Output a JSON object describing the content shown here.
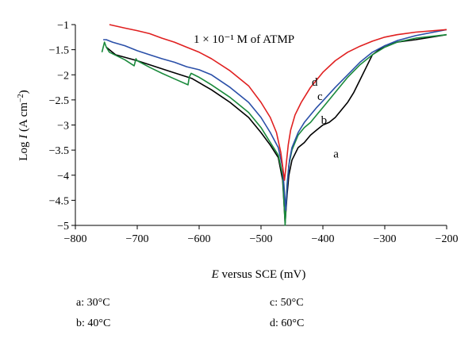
{
  "chart_data": {
    "type": "line",
    "title": "",
    "annotation": "1 × 10⁻¹ M of ATMP",
    "xlabel": "E versus SCE (mV)",
    "ylabel": "Log I (A cm⁻²)",
    "xlim": [
      -800,
      -200
    ],
    "ylim": [
      -5,
      -1
    ],
    "x_ticks": [
      -800,
      -700,
      -600,
      -500,
      -400,
      -300,
      -200
    ],
    "y_ticks": [
      -1,
      -1.5,
      -2,
      -2.5,
      -3,
      -3.5,
      -4,
      -4.5,
      -5
    ],
    "x_tick_labels": [
      "−800",
      "−700",
      "−600",
      "−500",
      "−400",
      "−300",
      "−200"
    ],
    "y_tick_labels": [
      "−1",
      "−1.5",
      "−2",
      "−2.5",
      "−3",
      "−3.5",
      "−4",
      "−4.5",
      "−5"
    ],
    "grid": false,
    "series": [
      {
        "name": "a",
        "color": "#000000",
        "x": [
          -750,
          -735,
          -700,
          -650,
          -612,
          -580,
          -550,
          -520,
          -500,
          -485,
          -472,
          -465,
          -461,
          -458,
          -455,
          -450,
          -440,
          -430,
          -420,
          -410,
          -400,
          -390,
          -380,
          -370,
          -360,
          -350,
          -340,
          -330,
          -320,
          -300,
          -280,
          -250,
          -200
        ],
        "y": [
          -1.45,
          -1.6,
          -1.72,
          -1.92,
          -2.07,
          -2.3,
          -2.55,
          -2.85,
          -3.15,
          -3.4,
          -3.65,
          -4.1,
          -4.95,
          -4.4,
          -4.0,
          -3.7,
          -3.45,
          -3.35,
          -3.2,
          -3.1,
          -3.0,
          -2.95,
          -2.85,
          -2.7,
          -2.55,
          -2.35,
          -2.1,
          -1.85,
          -1.6,
          -1.42,
          -1.35,
          -1.3,
          -1.2
        ]
      },
      {
        "name": "b",
        "color": "#1a8a3c",
        "x": [
          -757,
          -755,
          -753,
          -750,
          -745,
          -720,
          -705,
          -702,
          -700,
          -680,
          -660,
          -640,
          -618,
          -616,
          -613,
          -600,
          -580,
          -550,
          -520,
          -500,
          -485,
          -472,
          -465,
          -461,
          -458,
          -455,
          -450,
          -440,
          -430,
          -420,
          -410,
          -400,
          -380,
          -360,
          -340,
          -320,
          -300,
          -280,
          -250,
          -200
        ],
        "y": [
          -1.55,
          -1.45,
          -1.35,
          -1.45,
          -1.55,
          -1.7,
          -1.82,
          -1.68,
          -1.72,
          -1.85,
          -1.97,
          -2.08,
          -2.2,
          -2.05,
          -1.97,
          -2.05,
          -2.2,
          -2.45,
          -2.75,
          -3.05,
          -3.35,
          -3.6,
          -4.0,
          -5.0,
          -4.2,
          -3.8,
          -3.5,
          -3.2,
          -3.05,
          -2.95,
          -2.8,
          -2.65,
          -2.35,
          -2.05,
          -1.8,
          -1.6,
          -1.45,
          -1.35,
          -1.27,
          -1.2
        ]
      },
      {
        "name": "c",
        "color": "#2a4fa8",
        "x": [
          -755,
          -750,
          -740,
          -720,
          -700,
          -680,
          -660,
          -640,
          -620,
          -600,
          -580,
          -550,
          -520,
          -500,
          -485,
          -472,
          -465,
          -460,
          -457,
          -454,
          -450,
          -440,
          -430,
          -420,
          -410,
          -400,
          -380,
          -360,
          -340,
          -320,
          -300,
          -280,
          -250,
          -200
        ],
        "y": [
          -1.3,
          -1.3,
          -1.35,
          -1.42,
          -1.52,
          -1.6,
          -1.68,
          -1.75,
          -1.84,
          -1.9,
          -2.0,
          -2.25,
          -2.55,
          -2.85,
          -3.15,
          -3.45,
          -3.85,
          -4.7,
          -4.1,
          -3.7,
          -3.45,
          -3.15,
          -2.95,
          -2.8,
          -2.65,
          -2.52,
          -2.25,
          -2.0,
          -1.75,
          -1.55,
          -1.42,
          -1.32,
          -1.22,
          -1.1
        ]
      },
      {
        "name": "d",
        "color": "#e02020",
        "x": [
          -745,
          -720,
          -700,
          -680,
          -660,
          -640,
          -620,
          -600,
          -580,
          -550,
          -520,
          -500,
          -485,
          -475,
          -468,
          -462,
          -459,
          -456,
          -452,
          -445,
          -435,
          -420,
          -400,
          -380,
          -360,
          -340,
          -320,
          -300,
          -280,
          -250,
          -200
        ],
        "y": [
          -1.0,
          -1.07,
          -1.12,
          -1.18,
          -1.27,
          -1.35,
          -1.45,
          -1.55,
          -1.68,
          -1.92,
          -2.22,
          -2.55,
          -2.85,
          -3.15,
          -3.55,
          -4.1,
          -3.75,
          -3.4,
          -3.1,
          -2.8,
          -2.55,
          -2.25,
          -1.95,
          -1.72,
          -1.55,
          -1.43,
          -1.33,
          -1.25,
          -1.2,
          -1.15,
          -1.1
        ]
      }
    ],
    "series_labels": [
      {
        "text": "a",
        "x": -383,
        "y": -3.65
      },
      {
        "text": "b",
        "x": -403,
        "y": -2.98
      },
      {
        "text": "c",
        "x": -409,
        "y": -2.5
      },
      {
        "text": "d",
        "x": -418,
        "y": -2.22
      }
    ]
  },
  "legend": [
    {
      "text": "a: 30°C"
    },
    {
      "text": "b: 40°C"
    },
    {
      "text": "c: 50°C"
    },
    {
      "text": "d: 60°C"
    }
  ]
}
